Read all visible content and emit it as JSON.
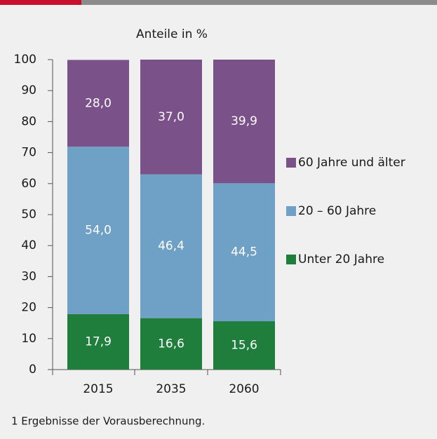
{
  "chart_data": {
    "type": "stacked_bar",
    "title": "Anteile in %",
    "categories": [
      "2015",
      "2035",
      "2060"
    ],
    "series": [
      {
        "name": "Unter 20 Jahre",
        "color": "#1f7e3c",
        "values": [
          17.9,
          16.6,
          15.6
        ],
        "value_labels": [
          "17,9",
          "16,6",
          "15,6"
        ]
      },
      {
        "name": "20 – 60 Jahre",
        "color": "#6fa0c6",
        "values": [
          54.0,
          46.4,
          44.5
        ],
        "value_labels": [
          "54,0",
          "46,4",
          "44,5"
        ]
      },
      {
        "name": "60 Jahre und älter",
        "color": "#7b5189",
        "values": [
          28.0,
          37.0,
          39.9
        ],
        "value_labels": [
          "28,0",
          "37,0",
          "39,9"
        ]
      }
    ],
    "ylim": [
      0,
      100
    ],
    "yticks": [
      0,
      10,
      20,
      30,
      40,
      50,
      60,
      70,
      80,
      90,
      100
    ],
    "legend": "right"
  },
  "footnote": "1 Ergebnisse der Vorausberechnung."
}
